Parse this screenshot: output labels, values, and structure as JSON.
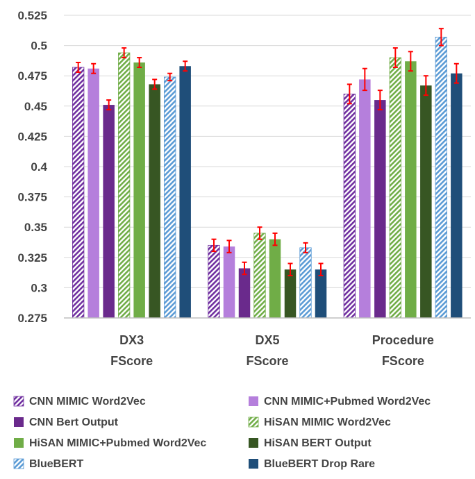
{
  "chart_data": {
    "type": "bar",
    "categories": [
      [
        "DX3",
        "FScore"
      ],
      [
        "DX5",
        "FScore"
      ],
      [
        "Procedure",
        "FScore"
      ]
    ],
    "ylim": [
      0.275,
      0.525
    ],
    "yticks": [
      "0.525",
      "0.5",
      "0.475",
      "0.45",
      "0.425",
      "0.4",
      "0.375",
      "0.35",
      "0.325",
      "0.3",
      "0.275"
    ],
    "grid": true,
    "legend_position": "bottom",
    "series": [
      {
        "name": "CNN MIMIC Word2Vec",
        "color": "#7030a0",
        "hatched": true,
        "values": [
          0.482,
          0.335,
          0.46
        ],
        "errors": [
          0.004,
          0.005,
          0.008
        ]
      },
      {
        "name": "CNN MIMIC+Pubmed Word2Vec",
        "color": "#b57fdc",
        "hatched": false,
        "values": [
          0.481,
          0.334,
          0.472
        ],
        "errors": [
          0.004,
          0.005,
          0.009
        ]
      },
      {
        "name": "CNN Bert Output",
        "color": "#6a2a8c",
        "hatched": false,
        "values": [
          0.451,
          0.316,
          0.455
        ],
        "errors": [
          0.004,
          0.005,
          0.008
        ]
      },
      {
        "name": "HiSAN MIMIC Word2Vec",
        "color": "#70ad47",
        "hatched": true,
        "values": [
          0.494,
          0.345,
          0.49
        ],
        "errors": [
          0.004,
          0.005,
          0.008
        ]
      },
      {
        "name": "HiSAN MIMIC+Pubmed Word2Vec",
        "color": "#70ad47",
        "hatched": false,
        "values": [
          0.486,
          0.34,
          0.487
        ],
        "errors": [
          0.004,
          0.005,
          0.008
        ]
      },
      {
        "name": "HiSAN BERT Output",
        "color": "#375623",
        "hatched": false,
        "values": [
          0.468,
          0.315,
          0.467
        ],
        "errors": [
          0.004,
          0.005,
          0.008
        ]
      },
      {
        "name": "BlueBERT",
        "color": "#5b9bd5",
        "hatched": true,
        "values": [
          0.474,
          0.333,
          0.507
        ],
        "errors": [
          0.003,
          0.004,
          0.007
        ]
      },
      {
        "name": "BlueBERT Drop Rare",
        "color": "#1f4e79",
        "hatched": false,
        "values": [
          0.483,
          0.315,
          0.477
        ],
        "errors": [
          0.004,
          0.005,
          0.008
        ]
      }
    ],
    "error_bar_color": "#ff0000"
  }
}
